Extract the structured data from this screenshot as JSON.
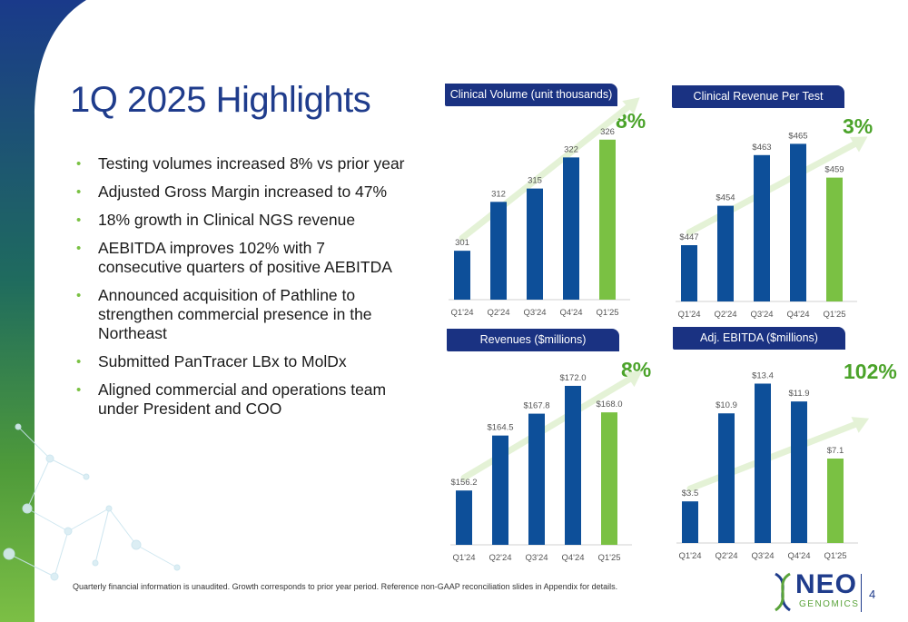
{
  "slide": {
    "title": "1Q 2025 Highlights",
    "bullets": [
      "Testing volumes increased 8% vs prior year",
      "Adjusted Gross Margin increased to 47%",
      "18% growth in Clinical NGS revenue",
      "AEBITDA improves 102% with 7 consecutive quarters of positive AEBITDA",
      "Announced acquisition of Pathline to strengthen commercial presence in the Northeast",
      "Submitted PanTracer LBx to MolDx",
      "Aligned commercial and operations team under President and COO"
    ],
    "bullet_glyph": "•",
    "footnote": "Quarterly financial information is unaudited. Growth corresponds to prior year period. Reference non-GAAP reconciliation slides in Appendix for details.",
    "page_number": "4",
    "logo": {
      "line1": "NEO",
      "line2": "GENOMICS"
    }
  },
  "colors": {
    "title": "#1f3c8c",
    "bar_blue": "#0d4f99",
    "bar_green": "#7ac143",
    "growth_green": "#4ba32a",
    "header_bg": "#1a3282",
    "arrow": "#e4f2d6"
  },
  "chart_data": [
    {
      "type": "bar",
      "title": "Clinical Volume (unit thousands)",
      "categories": [
        "Q1'24",
        "Q2'24",
        "Q3'24",
        "Q4'24",
        "Q1'25"
      ],
      "values": [
        301,
        312,
        315,
        322,
        326
      ],
      "labels": [
        "301",
        "312",
        "315",
        "322",
        "326"
      ],
      "growth": "8%",
      "highlight_last": true,
      "ylim": [
        290,
        328
      ],
      "grid": false
    },
    {
      "type": "bar",
      "title": "Clinical Revenue Per Test",
      "categories": [
        "Q1'24",
        "Q2'24",
        "Q3'24",
        "Q4'24",
        "Q1'25"
      ],
      "values": [
        447,
        454,
        463,
        465,
        459
      ],
      "labels": [
        "$447",
        "$454",
        "$463",
        "$465",
        "$459"
      ],
      "growth": "3%",
      "highlight_last": true,
      "ylim": [
        437,
        467
      ],
      "grid": false
    },
    {
      "type": "bar",
      "title": "Revenues ($millions)",
      "categories": [
        "Q1'24",
        "Q2'24",
        "Q3'24",
        "Q4'24",
        "Q1'25"
      ],
      "values": [
        156.2,
        164.5,
        167.8,
        172.0,
        168.0
      ],
      "labels": [
        "$156.2",
        "$164.5",
        "$167.8",
        "$172.0",
        "$168.0"
      ],
      "growth": "8%",
      "highlight_last": true,
      "ylim": [
        148,
        173.5
      ],
      "grid": false
    },
    {
      "type": "bar",
      "title": "Adj. EBITDA ($millions)",
      "categories": [
        "Q1'24",
        "Q2'24",
        "Q3'24",
        "Q4'24",
        "Q1'25"
      ],
      "values": [
        3.5,
        10.9,
        13.4,
        11.9,
        7.1
      ],
      "labels": [
        "$3.5",
        "$10.9",
        "$13.4",
        "$11.9",
        "$7.1"
      ],
      "growth": "102%",
      "highlight_last": true,
      "ylim": [
        0,
        14.2
      ],
      "grid": false
    }
  ]
}
